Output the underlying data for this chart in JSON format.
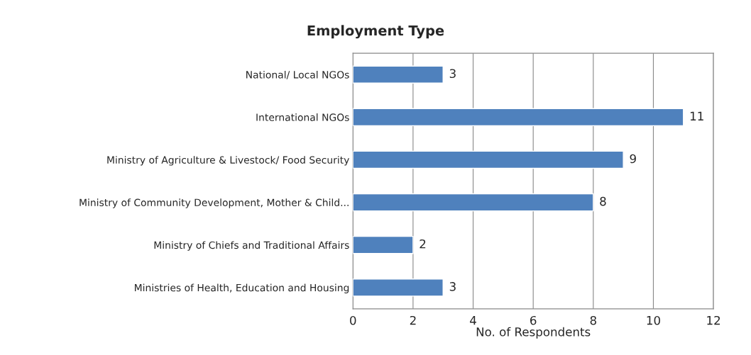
{
  "chart_data": {
    "type": "bar",
    "orientation": "horizontal",
    "title": "Employment Type",
    "xlabel": "No. of Respondents",
    "categories": [
      "National/ Local NGOs",
      "International NGOs",
      "Ministry of Agriculture & Livestock/ Food Security",
      "Ministry of Community Development, Mother & Child...",
      "Ministry of Chiefs and Traditional Affairs",
      "Ministries of Health, Education and Housing"
    ],
    "values": [
      3,
      11,
      9,
      8,
      2,
      3
    ],
    "color": "#4f81bd",
    "xlim": [
      0,
      12
    ],
    "xticks": [
      0,
      2,
      4,
      6,
      8,
      10,
      12
    ],
    "grid": "x",
    "data_labels": true
  }
}
